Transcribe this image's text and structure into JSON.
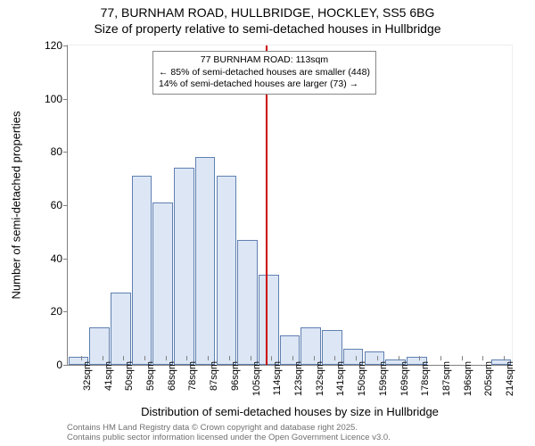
{
  "title_line1": "77, BURNHAM ROAD, HULLBRIDGE, HOCKLEY, SS5 6BG",
  "title_line2": "Size of property relative to semi-detached houses in Hullbridge",
  "chart": {
    "type": "histogram",
    "ylabel": "Number of semi-detached properties",
    "xlabel": "Distribution of semi-detached houses by size in Hullbridge",
    "ylim": [
      0,
      120
    ],
    "ytick_step": 20,
    "yticks": [
      0,
      20,
      40,
      60,
      80,
      100,
      120
    ],
    "categories": [
      "32sqm",
      "41sqm",
      "50sqm",
      "59sqm",
      "68sqm",
      "78sqm",
      "87sqm",
      "96sqm",
      "105sqm",
      "114sqm",
      "123sqm",
      "132sqm",
      "141sqm",
      "150sqm",
      "159sqm",
      "169sqm",
      "178sqm",
      "187sqm",
      "196sqm",
      "205sqm",
      "214sqm"
    ],
    "values": [
      3,
      14,
      27,
      71,
      61,
      74,
      78,
      71,
      47,
      34,
      11,
      14,
      13,
      6,
      5,
      2,
      3,
      0,
      0,
      0,
      2
    ],
    "bar_fill": "#dce6f5",
    "bar_stroke": "#6080b0",
    "background_color": "#ffffff",
    "axis_color": "#808080",
    "label_fontsize": 13,
    "title_fontsize": 14,
    "tick_fontsize": 12,
    "bar_width_ratio": 0.95,
    "refline": {
      "category_index": 8.9,
      "color": "#cc0000"
    },
    "annotation": {
      "line1": "77 BURNHAM ROAD: 113sqm",
      "line2": "← 85% of semi-detached houses are smaller (448)",
      "line3": "14% of semi-detached houses are larger (73) →",
      "border_color": "#888888",
      "bg": "#ffffff",
      "fontsize": 10.5
    }
  },
  "footer_line1": "Contains HM Land Registry data © Crown copyright and database right 2025.",
  "footer_line2": "Contains public sector information licensed under the Open Government Licence v3.0."
}
